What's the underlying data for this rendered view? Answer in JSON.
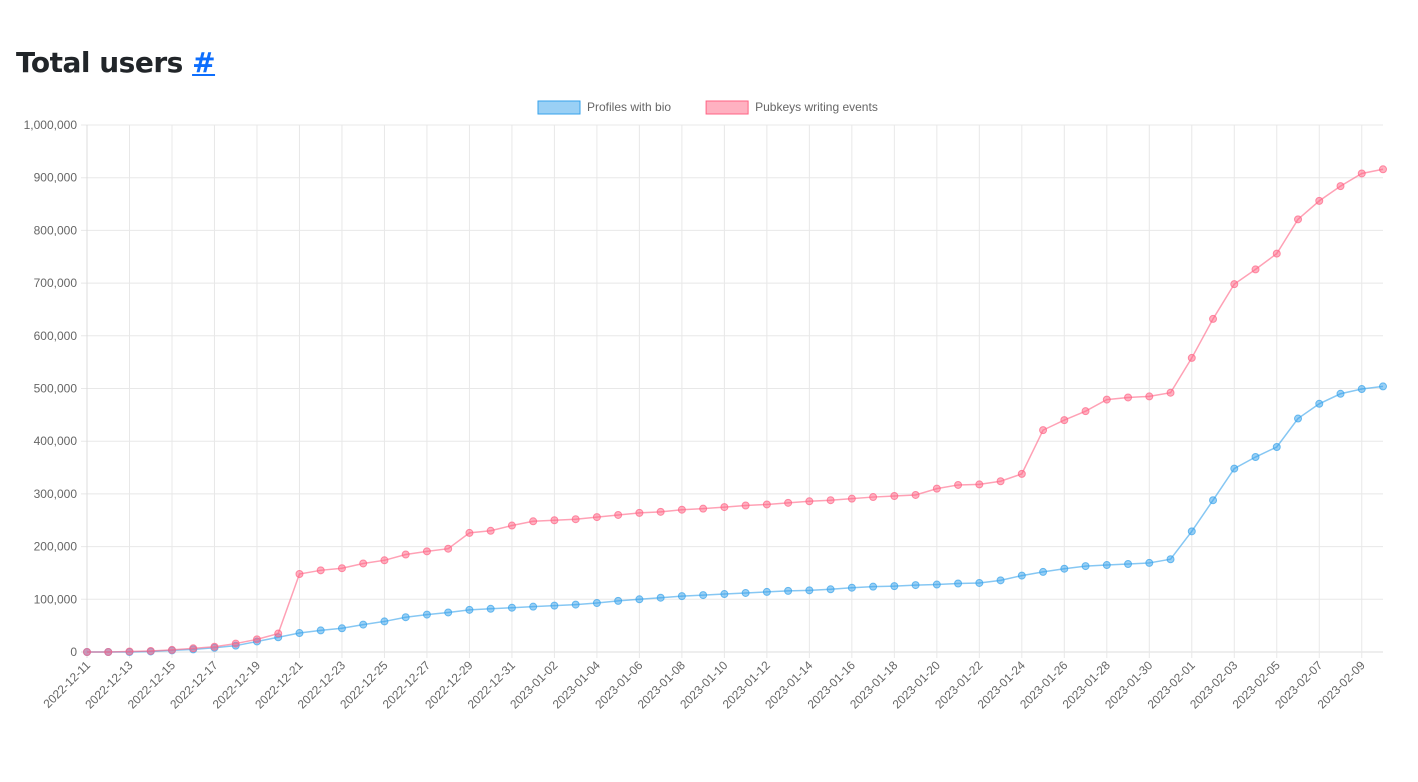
{
  "heading": {
    "title": "Total users",
    "anchor": "#"
  },
  "chart_data": {
    "type": "line",
    "title": "Total users",
    "xlabel": "",
    "ylabel": "",
    "ylim": [
      0,
      1000000
    ],
    "yticks": [
      "0",
      "100,000",
      "200,000",
      "300,000",
      "400,000",
      "500,000",
      "600,000",
      "700,000",
      "800,000",
      "900,000",
      "1,000,000"
    ],
    "grid": true,
    "legend_position": "top-center",
    "x": [
      "2022-12-11",
      "2022-12-12",
      "2022-12-13",
      "2022-12-14",
      "2022-12-15",
      "2022-12-16",
      "2022-12-17",
      "2022-12-18",
      "2022-12-19",
      "2022-12-20",
      "2022-12-21",
      "2022-12-22",
      "2022-12-23",
      "2022-12-24",
      "2022-12-25",
      "2022-12-26",
      "2022-12-27",
      "2022-12-28",
      "2022-12-29",
      "2022-12-30",
      "2022-12-31",
      "2023-01-01",
      "2023-01-02",
      "2023-01-03",
      "2023-01-04",
      "2023-01-05",
      "2023-01-06",
      "2023-01-07",
      "2023-01-08",
      "2023-01-09",
      "2023-01-10",
      "2023-01-11",
      "2023-01-12",
      "2023-01-13",
      "2023-01-14",
      "2023-01-15",
      "2023-01-16",
      "2023-01-17",
      "2023-01-18",
      "2023-01-19",
      "2023-01-20",
      "2023-01-21",
      "2023-01-22",
      "2023-01-23",
      "2023-01-24",
      "2023-01-25",
      "2023-01-26",
      "2023-01-27",
      "2023-01-28",
      "2023-01-29",
      "2023-01-30",
      "2023-01-31",
      "2023-02-01",
      "2023-02-02",
      "2023-02-03",
      "2023-02-04",
      "2023-02-05",
      "2023-02-06",
      "2023-02-07",
      "2023-02-08",
      "2023-02-09",
      "2023-02-10"
    ],
    "series": [
      {
        "name": "Profiles with bio",
        "color": "#36a2eb",
        "values": [
          0,
          0,
          0,
          1000,
          3000,
          5000,
          8000,
          12000,
          20000,
          28000,
          36000,
          41000,
          45000,
          52000,
          58000,
          66000,
          71000,
          75000,
          80000,
          82000,
          84000,
          86000,
          88000,
          90000,
          93000,
          97000,
          100000,
          103000,
          106000,
          108000,
          110000,
          112000,
          114000,
          116000,
          117000,
          119000,
          122000,
          124000,
          125000,
          127000,
          128000,
          130000,
          131000,
          136000,
          145000,
          152000,
          158000,
          163000,
          165000,
          167000,
          169000,
          176000,
          229000,
          288000,
          348000,
          370000,
          389000,
          443000,
          471000,
          490000,
          499000,
          504000
        ]
      },
      {
        "name": "Pubkeys writing events",
        "color": "#ff6384",
        "values": [
          0,
          0,
          1000,
          2000,
          4000,
          7000,
          10000,
          16000,
          24000,
          35000,
          148000,
          155000,
          159000,
          168000,
          174000,
          185000,
          191000,
          196000,
          226000,
          230000,
          240000,
          248000,
          250000,
          252000,
          256000,
          260000,
          264000,
          266000,
          270000,
          272000,
          275000,
          278000,
          280000,
          283000,
          286000,
          288000,
          291000,
          294000,
          296000,
          298000,
          310000,
          317000,
          318000,
          324000,
          338000,
          421000,
          440000,
          457000,
          479000,
          483000,
          485000,
          492000,
          558000,
          632000,
          698000,
          726000,
          756000,
          821000,
          856000,
          884000,
          908000,
          916000
        ]
      }
    ]
  }
}
